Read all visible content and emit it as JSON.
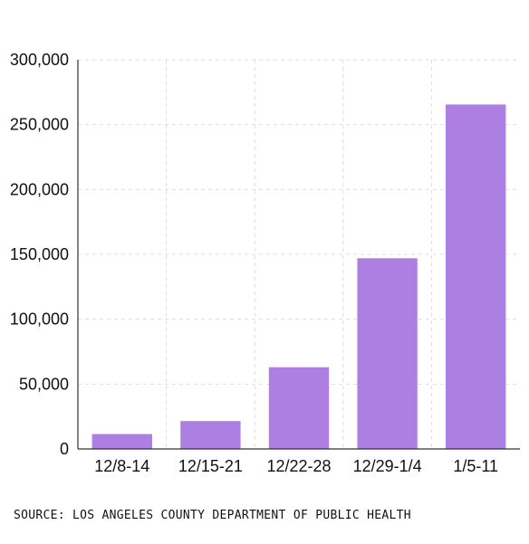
{
  "chart_data": {
    "type": "bar",
    "title": "",
    "xlabel": "",
    "ylabel": "",
    "categories": [
      "12/8-14",
      "12/15-21",
      "12/22-28",
      "12/29-1/4",
      "1/5-11"
    ],
    "values": [
      11500,
      21500,
      63000,
      147000,
      265500
    ],
    "ylim": [
      0,
      300000
    ],
    "yticks": [
      0,
      50000,
      100000,
      150000,
      200000,
      250000,
      300000
    ],
    "ytick_labels": [
      "0",
      "50,000",
      "100,000",
      "150,000",
      "200,000",
      "250,000",
      "300,000"
    ],
    "bar_color": "#ad7fe2",
    "grid": true,
    "grid_style": "dashed"
  },
  "source": "SOURCE: LOS ANGELES COUNTY DEPARTMENT OF PUBLIC HEALTH"
}
